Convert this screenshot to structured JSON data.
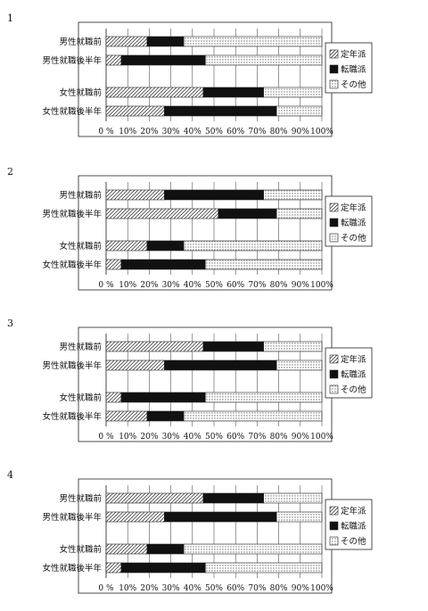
{
  "chart_data": [
    {
      "type": "bar",
      "stacked": true,
      "orientation": "horizontal",
      "number": "1",
      "categories": [
        "男性就職前",
        "男性就職後半年",
        "女性就職前",
        "女性就職後半年"
      ],
      "series": [
        {
          "name": "定年派",
          "values": [
            19,
            7,
            45,
            27
          ]
        },
        {
          "name": "転職派",
          "values": [
            17,
            39,
            28,
            52
          ]
        },
        {
          "name": "その他",
          "values": [
            64,
            54,
            27,
            21
          ]
        }
      ],
      "xticks": [
        "0 %",
        "10%",
        "20%",
        "30%",
        "40%",
        "50%",
        "60%",
        "70%",
        "80%",
        "90%",
        "100%"
      ],
      "xlim": [
        0,
        100
      ],
      "legend_position": "right"
    },
    {
      "type": "bar",
      "stacked": true,
      "orientation": "horizontal",
      "number": "2",
      "categories": [
        "男性就職前",
        "男性就職後半年",
        "女性就職前",
        "女性就職後半年"
      ],
      "series": [
        {
          "name": "定年派",
          "values": [
            27,
            52,
            19,
            7
          ]
        },
        {
          "name": "転職派",
          "values": [
            46,
            27,
            17,
            39
          ]
        },
        {
          "name": "その他",
          "values": [
            27,
            21,
            64,
            54
          ]
        }
      ],
      "xticks": [
        "0 %",
        "10%",
        "20%",
        "30%",
        "40%",
        "50%",
        "60%",
        "70%",
        "80%",
        "90%",
        "100%"
      ],
      "xlim": [
        0,
        100
      ],
      "legend_position": "right"
    },
    {
      "type": "bar",
      "stacked": true,
      "orientation": "horizontal",
      "number": "3",
      "categories": [
        "男性就職前",
        "男性就職後半年",
        "女性就職前",
        "女性就職後半年"
      ],
      "series": [
        {
          "name": "定年派",
          "values": [
            45,
            27,
            7,
            19
          ]
        },
        {
          "name": "転職派",
          "values": [
            28,
            52,
            39,
            17
          ]
        },
        {
          "name": "その他",
          "values": [
            27,
            21,
            54,
            64
          ]
        }
      ],
      "xticks": [
        "0 %",
        "10%",
        "20%",
        "30%",
        "40%",
        "50%",
        "60%",
        "70%",
        "80%",
        "90%",
        "100%"
      ],
      "xlim": [
        0,
        100
      ],
      "legend_position": "right"
    },
    {
      "type": "bar",
      "stacked": true,
      "orientation": "horizontal",
      "number": "4",
      "categories": [
        "男性就職前",
        "男性就職後半年",
        "女性就職前",
        "女性就職後半年"
      ],
      "series": [
        {
          "name": "定年派",
          "values": [
            45,
            27,
            19,
            7
          ]
        },
        {
          "name": "転職派",
          "values": [
            28,
            52,
            17,
            39
          ]
        },
        {
          "name": "その他",
          "values": [
            27,
            21,
            64,
            54
          ]
        }
      ],
      "xticks": [
        "0 %",
        "10%",
        "20%",
        "30%",
        "40%",
        "50%",
        "60%",
        "70%",
        "80%",
        "90%",
        "100%"
      ],
      "xlim": [
        0,
        100
      ],
      "legend_position": "right"
    }
  ]
}
